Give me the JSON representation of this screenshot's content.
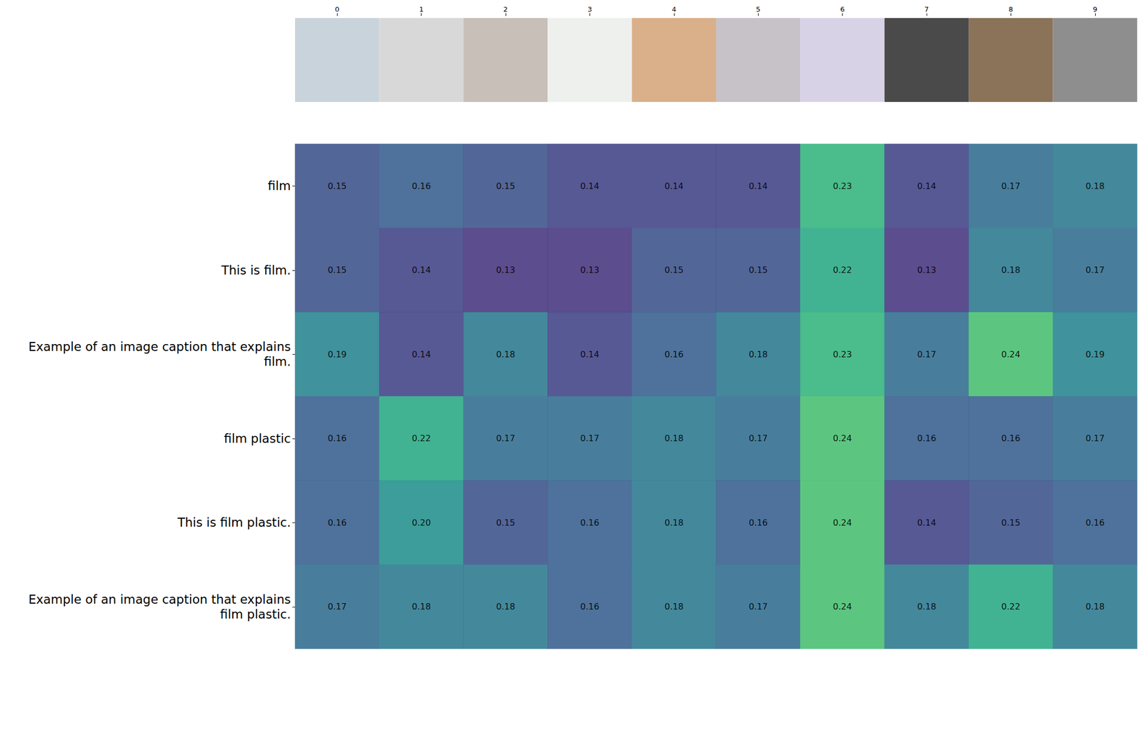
{
  "chart_data": {
    "type": "heatmap",
    "columns": [
      0,
      1,
      2,
      3,
      4,
      5,
      6,
      7,
      8,
      9
    ],
    "rows": [
      "film",
      "This is film.",
      "Example of an image caption that explains\nfilm.",
      "film plastic",
      "This is film plastic.",
      "Example of an image caption that explains\nfilm plastic."
    ],
    "cells": [
      [
        0.15,
        0.16,
        0.15,
        0.14,
        0.14,
        0.14,
        0.23,
        0.14,
        0.17,
        0.18
      ],
      [
        0.15,
        0.14,
        0.13,
        0.13,
        0.15,
        0.15,
        0.22,
        0.13,
        0.18,
        0.17
      ],
      [
        0.19,
        0.14,
        0.18,
        0.14,
        0.16,
        0.18,
        0.23,
        0.17,
        0.24,
        0.19
      ],
      [
        0.16,
        0.22,
        0.17,
        0.17,
        0.18,
        0.17,
        0.24,
        0.16,
        0.16,
        0.17
      ],
      [
        0.16,
        0.2,
        0.15,
        0.16,
        0.18,
        0.16,
        0.24,
        0.14,
        0.15,
        0.16
      ],
      [
        0.17,
        0.18,
        0.18,
        0.16,
        0.18,
        0.17,
        0.24,
        0.18,
        0.22,
        0.18
      ]
    ],
    "value_labels": [
      [
        "0.15",
        "0.16",
        "0.15",
        "0.14",
        "0.14",
        "0.14",
        "0.23",
        "0.14",
        "0.17",
        "0.18"
      ],
      [
        "0.15",
        "0.14",
        "0.13",
        "0.13",
        "0.15",
        "0.15",
        "0.22",
        "0.13",
        "0.18",
        "0.17"
      ],
      [
        "0.19",
        "0.14",
        "0.18",
        "0.14",
        "0.16",
        "0.18",
        "0.23",
        "0.17",
        "0.24",
        "0.19"
      ],
      [
        "0.16",
        "0.22",
        "0.17",
        "0.17",
        "0.18",
        "0.17",
        "0.24",
        "0.16",
        "0.16",
        "0.17"
      ],
      [
        "0.16",
        "0.20",
        "0.15",
        "0.16",
        "0.18",
        "0.16",
        "0.24",
        "0.14",
        "0.15",
        "0.16"
      ],
      [
        "0.17",
        "0.18",
        "0.18",
        "0.16",
        "0.18",
        "0.17",
        "0.24",
        "0.18",
        "0.22",
        "0.18"
      ]
    ],
    "color_range": [
      0.1,
      0.3
    ],
    "data_labels": true
  }
}
